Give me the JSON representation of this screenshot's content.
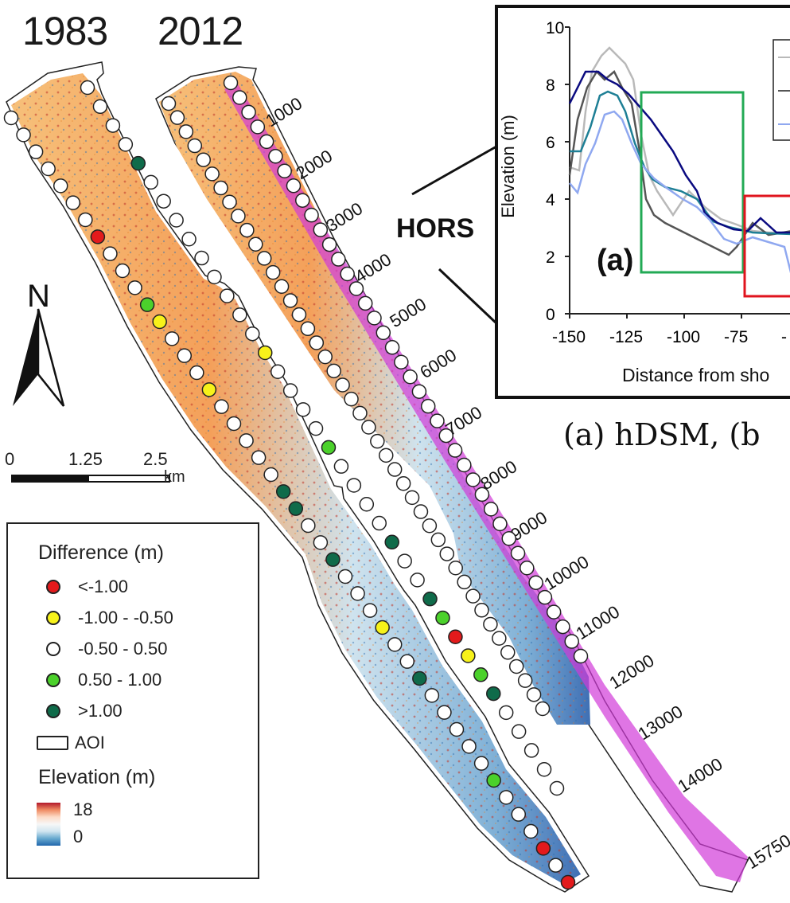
{
  "years": {
    "left": "1983",
    "right": "2012"
  },
  "north_label": "N",
  "scale": {
    "ticks": [
      "0",
      "1.25",
      "2.5"
    ],
    "unit": "km"
  },
  "legend": {
    "difference_title": "Difference (m)",
    "classes": [
      {
        "label": "<-1.00",
        "color": "#e31a1c"
      },
      {
        "label": "-1.00 - -0.50",
        "color": "#f7f21a"
      },
      {
        "label": "-0.50 - 0.50",
        "color": "#ffffff"
      },
      {
        "label": "0.50 - 1.00",
        "color": "#4bd12b"
      },
      {
        "label": ">1.00",
        "color": "#0f6b4a"
      }
    ],
    "aoi_label": "AOI",
    "elevation_title": "Elevation (m)",
    "elevation_max": "18",
    "elevation_min": "0"
  },
  "chainage_labels": [
    "1000",
    "2000",
    "3000",
    "4000",
    "5000",
    "6000",
    "7000",
    "8000",
    "9000",
    "10000",
    "11000",
    "12000",
    "13000",
    "14000",
    "15750"
  ],
  "site_label": "HORS",
  "caption": "(a) hDSM, (b",
  "inset": {
    "panel_label": "(a)",
    "ylabel": "Elevation (m)",
    "xlabel": "Distance from sho",
    "yticks": [
      "0",
      "2",
      "4",
      "6",
      "8",
      "10"
    ],
    "xticks": [
      "-150",
      "-125",
      "-100",
      "-75",
      "-"
    ],
    "box_colors": {
      "green": "#22aa55",
      "red": "#e0141e"
    },
    "line_colors": [
      "#0a0a80",
      "#1e7f95",
      "#555555",
      "#b0b0b0",
      "#8fa8f0"
    ]
  }
}
